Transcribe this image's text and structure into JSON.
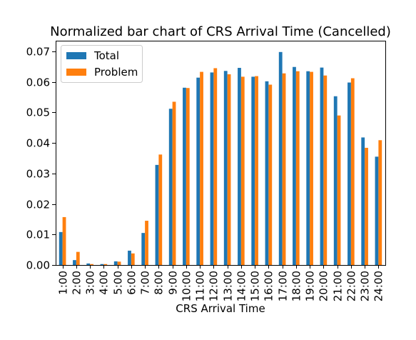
{
  "chart_data": {
    "type": "bar",
    "title": "Normalized bar chart of CRS Arrival Time (Cancelled)",
    "xlabel": "CRS Arrival Time",
    "ylabel": "",
    "ylim": [
      0,
      0.0735
    ],
    "yticks": [
      "0.00",
      "0.01",
      "0.02",
      "0.03",
      "0.04",
      "0.05",
      "0.06",
      "0.07"
    ],
    "ytick_values": [
      0,
      0.01,
      0.02,
      0.03,
      0.04,
      0.05,
      0.06,
      0.07
    ],
    "categories": [
      "1:00",
      "2:00",
      "3:00",
      "4:00",
      "5:00",
      "6:00",
      "7:00",
      "8:00",
      "9:00",
      "10:00",
      "11:00",
      "12:00",
      "13:00",
      "14:00",
      "15:00",
      "16:00",
      "17:00",
      "18:00",
      "19:00",
      "20:00",
      "21:00",
      "22:00",
      "23:00",
      "24:00"
    ],
    "series": [
      {
        "name": "Total",
        "color": "#1f77b4",
        "values": [
          0.0108,
          0.0016,
          0.0005,
          0.0003,
          0.0012,
          0.0047,
          0.0105,
          0.0328,
          0.0512,
          0.0581,
          0.0614,
          0.0631,
          0.0636,
          0.0646,
          0.0617,
          0.0602,
          0.0698,
          0.0649,
          0.0635,
          0.0647,
          0.0553,
          0.0598,
          0.0418,
          0.0355
        ]
      },
      {
        "name": "Problem",
        "color": "#ff7f0e",
        "values": [
          0.0157,
          0.0043,
          0.0003,
          0.0003,
          0.0011,
          0.0038,
          0.0145,
          0.0362,
          0.0535,
          0.058,
          0.0633,
          0.0645,
          0.0625,
          0.0617,
          0.0619,
          0.0591,
          0.0628,
          0.0635,
          0.0633,
          0.0621,
          0.049,
          0.0612,
          0.0384,
          0.0409
        ]
      }
    ],
    "legend": "top-left",
    "grid": false
  }
}
